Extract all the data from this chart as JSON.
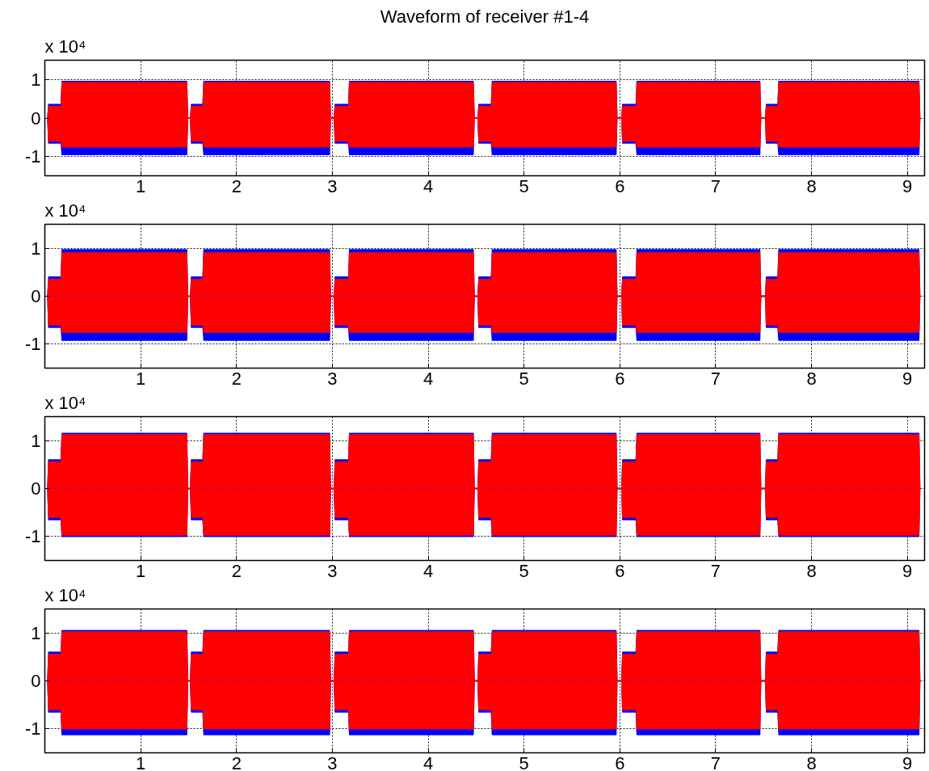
{
  "chart_data": [
    {
      "type": "area",
      "title": "Waveform of receiver #1-4",
      "annotations": [
        "x 10⁴"
      ],
      "x": [
        0.03,
        0.04,
        0.17,
        0.18,
        1.48,
        1.49,
        1.52,
        1.53,
        1.65,
        1.66,
        2.97,
        2.98,
        3.02,
        3.03,
        3.17,
        3.18,
        4.47,
        4.48,
        4.52,
        4.53,
        4.66,
        4.67,
        5.96,
        5.97,
        6.02,
        6.03,
        6.17,
        6.18,
        7.46,
        7.47,
        7.52,
        7.53,
        7.65,
        7.66,
        9.12,
        9.13
      ],
      "xlim": [
        0,
        9.18
      ],
      "xticks": [
        1,
        2,
        3,
        4,
        5,
        6,
        7,
        8,
        9
      ],
      "ylim": [
        -1.5,
        1.5
      ],
      "yticks": [
        -1,
        0,
        1
      ],
      "grid": true,
      "series": [
        {
          "color": "#0000ff",
          "values": [
            0,
            0.35,
            0.35,
            0.95,
            0.95,
            0,
            0,
            0.35,
            0.35,
            0.95,
            0.95,
            0,
            0,
            0.35,
            0.35,
            0.95,
            0.95,
            0,
            0,
            0.35,
            0.35,
            0.95,
            0.95,
            0,
            0,
            0.35,
            0.35,
            0.95,
            0.95,
            0,
            0,
            0.35,
            0.35,
            0.95,
            0.95,
            0
          ]
        },
        {
          "color": "#0000fe",
          "values": [
            0,
            -0.65,
            -0.65,
            -0.95,
            -0.95,
            0,
            0,
            -0.65,
            -0.65,
            -0.95,
            -0.95,
            0,
            0,
            -0.65,
            -0.65,
            -0.95,
            -0.95,
            0,
            0,
            -0.65,
            -0.65,
            -0.95,
            -0.95,
            0,
            0,
            -0.65,
            -0.65,
            -0.95,
            -0.95,
            0,
            0,
            -0.65,
            -0.65,
            -0.95,
            -0.95,
            0
          ]
        },
        {
          "color": "#ff0000",
          "values": [
            0,
            0.3,
            0.3,
            0.92,
            0.92,
            0,
            0,
            0.3,
            0.3,
            0.92,
            0.92,
            0,
            0,
            0.3,
            0.3,
            0.92,
            0.92,
            0,
            0,
            0.3,
            0.3,
            0.92,
            0.92,
            0,
            0,
            0.3,
            0.3,
            0.92,
            0.92,
            0,
            0,
            0.3,
            0.3,
            0.92,
            0.92,
            0
          ]
        },
        {
          "color": "#fe0000",
          "values": [
            0,
            -0.6,
            -0.6,
            -0.75,
            -0.75,
            0,
            0,
            -0.6,
            -0.6,
            -0.75,
            -0.75,
            0,
            0,
            -0.6,
            -0.6,
            -0.75,
            -0.75,
            0,
            0,
            -0.6,
            -0.6,
            -0.75,
            -0.75,
            0,
            0,
            -0.6,
            -0.6,
            -0.75,
            -0.75,
            0,
            0,
            -0.6,
            -0.6,
            -0.75,
            -0.75,
            0
          ]
        }
      ]
    },
    {
      "type": "area",
      "annotations": [
        "x 10⁴"
      ],
      "x": [
        0.03,
        0.04,
        0.17,
        0.18,
        1.48,
        1.49,
        1.52,
        1.53,
        1.65,
        1.66,
        2.97,
        2.98,
        3.02,
        3.03,
        3.17,
        3.18,
        4.47,
        4.48,
        4.52,
        4.53,
        4.66,
        4.67,
        5.96,
        5.97,
        6.02,
        6.03,
        6.17,
        6.18,
        7.46,
        7.47,
        7.52,
        7.53,
        7.65,
        7.66,
        9.12,
        9.13
      ],
      "xlim": [
        0,
        9.18
      ],
      "xticks": [
        1,
        2,
        3,
        4,
        5,
        6,
        7,
        8,
        9
      ],
      "ylim": [
        -1.5,
        1.5
      ],
      "yticks": [
        -1,
        0,
        1
      ],
      "grid": true,
      "series": [
        {
          "color": "#0000ff",
          "values": [
            0,
            0.4,
            0.4,
            0.97,
            0.97,
            0,
            0,
            0.4,
            0.4,
            0.97,
            0.97,
            0,
            0,
            0.4,
            0.4,
            0.97,
            0.97,
            0,
            0,
            0.4,
            0.4,
            0.97,
            0.97,
            0,
            0,
            0.4,
            0.4,
            0.97,
            0.97,
            0,
            0,
            0.4,
            0.4,
            0.97,
            0.97,
            0
          ]
        },
        {
          "color": "#0000fe",
          "values": [
            0,
            -0.65,
            -0.65,
            -0.92,
            -0.92,
            0,
            0,
            -0.65,
            -0.65,
            -0.92,
            -0.92,
            0,
            0,
            -0.65,
            -0.65,
            -0.92,
            -0.92,
            0,
            0,
            -0.65,
            -0.65,
            -0.92,
            -0.92,
            0,
            0,
            -0.65,
            -0.65,
            -0.92,
            -0.92,
            0,
            0,
            -0.65,
            -0.65,
            -0.92,
            -0.92,
            0
          ]
        },
        {
          "color": "#ff0000",
          "values": [
            0,
            0.35,
            0.35,
            0.9,
            0.9,
            0,
            0,
            0.35,
            0.35,
            0.9,
            0.9,
            0,
            0,
            0.35,
            0.35,
            0.9,
            0.9,
            0,
            0,
            0.35,
            0.35,
            0.9,
            0.9,
            0,
            0,
            0.35,
            0.35,
            0.9,
            0.9,
            0,
            0,
            0.35,
            0.35,
            0.9,
            0.9,
            0
          ]
        },
        {
          "color": "#fe0000",
          "values": [
            0,
            -0.6,
            -0.6,
            -0.75,
            -0.75,
            0,
            0,
            -0.6,
            -0.6,
            -0.75,
            -0.75,
            0,
            0,
            -0.6,
            -0.6,
            -0.75,
            -0.75,
            0,
            0,
            -0.6,
            -0.6,
            -0.75,
            -0.75,
            0,
            0,
            -0.6,
            -0.6,
            -0.75,
            -0.75,
            0,
            0,
            -0.6,
            -0.6,
            -0.75,
            -0.75,
            0
          ]
        }
      ]
    },
    {
      "type": "area",
      "annotations": [
        "x 10⁴"
      ],
      "x": [
        0.03,
        0.04,
        0.17,
        0.18,
        1.48,
        1.49,
        1.52,
        1.53,
        1.65,
        1.66,
        2.97,
        2.98,
        3.02,
        3.03,
        3.17,
        3.18,
        4.47,
        4.48,
        4.52,
        4.53,
        4.66,
        4.67,
        5.96,
        5.97,
        6.02,
        6.03,
        6.17,
        6.18,
        7.46,
        7.47,
        7.52,
        7.53,
        7.65,
        7.66,
        9.12,
        9.13
      ],
      "xlim": [
        0,
        9.18
      ],
      "xticks": [
        1,
        2,
        3,
        4,
        5,
        6,
        7,
        8,
        9
      ],
      "ylim": [
        -1.5,
        1.5
      ],
      "yticks": [
        -1,
        0,
        1
      ],
      "grid": true,
      "series": [
        {
          "color": "#0000ff",
          "values": [
            0,
            0.6,
            0.6,
            1.15,
            1.15,
            0,
            0,
            0.6,
            0.6,
            1.15,
            1.15,
            0,
            0,
            0.6,
            0.6,
            1.15,
            1.15,
            0,
            0,
            0.6,
            0.6,
            1.15,
            1.15,
            0,
            0,
            0.6,
            0.6,
            1.15,
            1.15,
            0,
            0,
            0.6,
            0.6,
            1.15,
            1.15,
            0
          ]
        },
        {
          "color": "#0000fe",
          "values": [
            0,
            -0.65,
            -0.65,
            -1.0,
            -1.0,
            0,
            0,
            -0.65,
            -0.65,
            -1.0,
            -1.0,
            0,
            0,
            -0.65,
            -0.65,
            -1.0,
            -1.0,
            0,
            0,
            -0.65,
            -0.65,
            -1.0,
            -1.0,
            0,
            0,
            -0.65,
            -0.65,
            -1.0,
            -1.0,
            0,
            0,
            -0.65,
            -0.65,
            -1.0,
            -1.0,
            0
          ]
        },
        {
          "color": "#ff0000",
          "values": [
            0,
            0.55,
            0.55,
            1.12,
            1.12,
            0,
            0,
            0.55,
            0.55,
            1.12,
            1.12,
            0,
            0,
            0.55,
            0.55,
            1.12,
            1.12,
            0,
            0,
            0.55,
            0.55,
            1.12,
            1.12,
            0,
            0,
            0.55,
            0.55,
            1.12,
            1.12,
            0,
            0,
            0.55,
            0.55,
            1.12,
            1.12,
            0
          ]
        },
        {
          "color": "#fe0000",
          "values": [
            0,
            -0.6,
            -0.6,
            -0.97,
            -0.97,
            0,
            0,
            -0.6,
            -0.6,
            -0.97,
            -0.97,
            0,
            0,
            -0.6,
            -0.6,
            -0.97,
            -0.97,
            0,
            0,
            -0.6,
            -0.6,
            -0.97,
            -0.97,
            0,
            0,
            -0.6,
            -0.6,
            -0.97,
            -0.97,
            0,
            0,
            -0.6,
            -0.6,
            -0.97,
            -0.97,
            0
          ]
        }
      ]
    },
    {
      "type": "area",
      "annotations": [
        "x 10⁴"
      ],
      "x": [
        0.03,
        0.04,
        0.17,
        0.18,
        1.48,
        1.49,
        1.52,
        1.53,
        1.65,
        1.66,
        2.97,
        2.98,
        3.02,
        3.03,
        3.17,
        3.18,
        4.47,
        4.48,
        4.52,
        4.53,
        4.66,
        4.67,
        5.96,
        5.97,
        6.02,
        6.03,
        6.17,
        6.18,
        7.46,
        7.47,
        7.52,
        7.53,
        7.65,
        7.66,
        9.12,
        9.13
      ],
      "xlim": [
        0,
        9.18
      ],
      "xticks": [
        1,
        2,
        3,
        4,
        5,
        6,
        7,
        8,
        9
      ],
      "ylim": [
        -1.5,
        1.5
      ],
      "yticks": [
        -1,
        0,
        1
      ],
      "grid": true,
      "series": [
        {
          "color": "#0000ff",
          "values": [
            0,
            0.6,
            0.6,
            1.05,
            1.05,
            0,
            0,
            0.6,
            0.6,
            1.05,
            1.05,
            0,
            0,
            0.6,
            0.6,
            1.05,
            1.05,
            0,
            0,
            0.6,
            0.6,
            1.05,
            1.05,
            0,
            0,
            0.6,
            0.6,
            1.05,
            1.05,
            0,
            0,
            0.6,
            0.6,
            1.05,
            1.05,
            0
          ]
        },
        {
          "color": "#0000fe",
          "values": [
            0,
            -0.65,
            -0.65,
            -1.12,
            -1.12,
            0,
            0,
            -0.65,
            -0.65,
            -1.12,
            -1.12,
            0,
            0,
            -0.65,
            -0.65,
            -1.12,
            -1.12,
            0,
            0,
            -0.65,
            -0.65,
            -1.12,
            -1.12,
            0,
            0,
            -0.65,
            -0.65,
            -1.12,
            -1.12,
            0,
            0,
            -0.65,
            -0.65,
            -1.12,
            -1.12,
            0
          ]
        },
        {
          "color": "#ff0000",
          "values": [
            0,
            0.55,
            0.55,
            1.02,
            1.02,
            0,
            0,
            0.55,
            0.55,
            1.02,
            1.02,
            0,
            0,
            0.55,
            0.55,
            1.02,
            1.02,
            0,
            0,
            0.55,
            0.55,
            1.02,
            1.02,
            0,
            0,
            0.55,
            0.55,
            1.02,
            1.02,
            0,
            0,
            0.55,
            0.55,
            1.02,
            1.02,
            0
          ]
        },
        {
          "color": "#fe0000",
          "values": [
            0,
            -0.6,
            -0.6,
            -1.0,
            -1.0,
            0,
            0,
            -0.6,
            -0.6,
            -1.0,
            -1.0,
            0,
            0,
            -0.6,
            -0.6,
            -1.0,
            -1.0,
            0,
            0,
            -0.6,
            -0.6,
            -1.0,
            -1.0,
            0,
            0,
            -0.6,
            -0.6,
            -1.0,
            -1.0,
            0,
            0,
            -0.6,
            -0.6,
            -1.0,
            -1.0,
            0
          ]
        }
      ]
    }
  ]
}
